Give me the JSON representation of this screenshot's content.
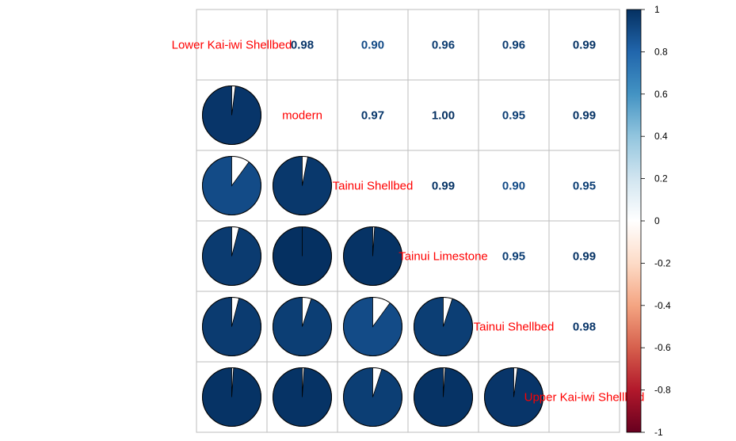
{
  "chart_data": {
    "type": "heatmap",
    "variables": [
      "Lower Kai-iwi Shellbed",
      "modern",
      "Tainui Shellbed",
      "Tainui Limestone",
      "Tainui Shellbed",
      "Upper Kai-iwi Shellbed"
    ],
    "matrix": [
      [
        1.0,
        0.98,
        0.9,
        0.96,
        0.96,
        0.99
      ],
      [
        0.98,
        1.0,
        0.97,
        1.0,
        0.95,
        0.99
      ],
      [
        0.9,
        0.97,
        1.0,
        0.99,
        0.9,
        0.95
      ],
      [
        0.96,
        1.0,
        0.99,
        1.0,
        0.95,
        0.99
      ],
      [
        0.96,
        0.95,
        0.9,
        0.95,
        1.0,
        0.98
      ],
      [
        0.99,
        0.99,
        0.95,
        0.99,
        0.98,
        1.0
      ]
    ],
    "upper_labels": [
      [
        "",
        "0.98",
        "0.90",
        "0.96",
        "0.96",
        "0.99"
      ],
      [
        "",
        "",
        "0.97",
        "1.00",
        "0.95",
        "0.99"
      ],
      [
        "",
        "",
        "",
        "0.99",
        "0.90",
        "0.95"
      ],
      [
        "",
        "",
        "",
        "",
        "0.95",
        "0.99"
      ],
      [
        "",
        "",
        "",
        "",
        "",
        "0.98"
      ],
      [
        "",
        "",
        "",
        "",
        "",
        ""
      ]
    ],
    "lower": "pie",
    "upper": "number",
    "diagonal": "variable names",
    "colorbar": {
      "ticks": [
        "1",
        "0.8",
        "0.6",
        "0.4",
        "0.2",
        "0",
        "-0.2",
        "-0.4",
        "-0.6",
        "-0.8",
        "-1"
      ],
      "range": [
        -1,
        1
      ]
    },
    "colors": {
      "label": "#ff0000",
      "strong_positive": "#083166",
      "grid": "#bebebe"
    }
  }
}
